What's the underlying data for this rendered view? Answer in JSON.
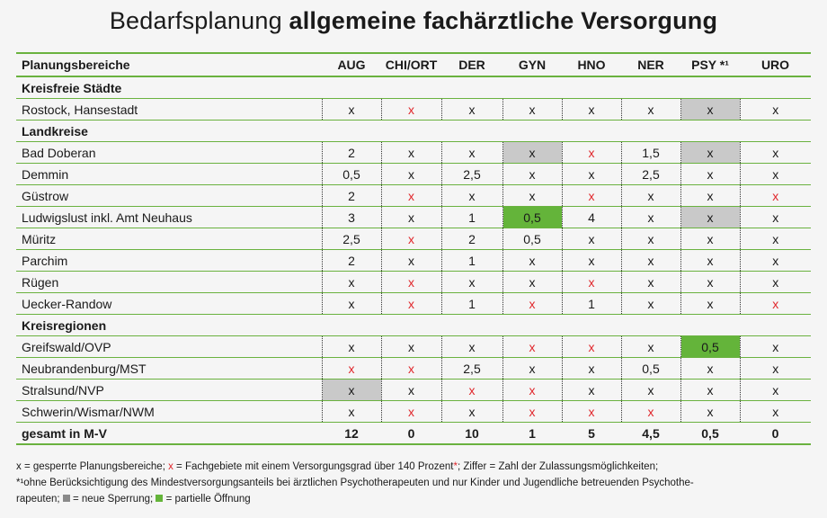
{
  "title": {
    "light": "Bedarfsplanung ",
    "bold": "allgemeine fachärztliche Versorgung"
  },
  "header": {
    "label": "Planungsbereiche",
    "columns": [
      "AUG",
      "CHI/ORT",
      "DER",
      "GYN",
      "HNO",
      "NER",
      "PSY *¹",
      "URO"
    ]
  },
  "groups": [
    {
      "label": "Kreisfreie Städte",
      "rows": [
        {
          "name": "Rostock, Hansestadt",
          "cells": [
            {
              "v": "x"
            },
            {
              "v": "x",
              "red": true
            },
            {
              "v": "x"
            },
            {
              "v": "x"
            },
            {
              "v": "x"
            },
            {
              "v": "x"
            },
            {
              "v": "x",
              "bg": "gray"
            },
            {
              "v": "x"
            }
          ]
        }
      ]
    },
    {
      "label": "Landkreise",
      "rows": [
        {
          "name": "Bad Doberan",
          "cells": [
            {
              "v": "2"
            },
            {
              "v": "x"
            },
            {
              "v": "x"
            },
            {
              "v": "x",
              "bg": "gray"
            },
            {
              "v": "x",
              "red": true
            },
            {
              "v": "1,5"
            },
            {
              "v": "x",
              "bg": "gray"
            },
            {
              "v": "x"
            }
          ]
        },
        {
          "name": "Demmin",
          "cells": [
            {
              "v": "0,5"
            },
            {
              "v": "x"
            },
            {
              "v": "2,5"
            },
            {
              "v": "x"
            },
            {
              "v": "x"
            },
            {
              "v": "2,5"
            },
            {
              "v": "x"
            },
            {
              "v": "x"
            }
          ]
        },
        {
          "name": "Güstrow",
          "cells": [
            {
              "v": "2"
            },
            {
              "v": "x",
              "red": true
            },
            {
              "v": "x"
            },
            {
              "v": "x"
            },
            {
              "v": "x",
              "red": true
            },
            {
              "v": "x"
            },
            {
              "v": "x"
            },
            {
              "v": "x",
              "red": true
            }
          ]
        },
        {
          "name": "Ludwigslust inkl. Amt Neuhaus",
          "cells": [
            {
              "v": "3"
            },
            {
              "v": "x"
            },
            {
              "v": "1"
            },
            {
              "v": "0,5",
              "bg": "green"
            },
            {
              "v": "4"
            },
            {
              "v": "x"
            },
            {
              "v": "x",
              "bg": "gray"
            },
            {
              "v": "x"
            }
          ]
        },
        {
          "name": "Müritz",
          "cells": [
            {
              "v": "2,5"
            },
            {
              "v": "x",
              "red": true
            },
            {
              "v": "2"
            },
            {
              "v": "0,5"
            },
            {
              "v": "x"
            },
            {
              "v": "x"
            },
            {
              "v": "x"
            },
            {
              "v": "x"
            }
          ]
        },
        {
          "name": "Parchim",
          "cells": [
            {
              "v": "2"
            },
            {
              "v": "x"
            },
            {
              "v": "1"
            },
            {
              "v": "x"
            },
            {
              "v": "x"
            },
            {
              "v": "x"
            },
            {
              "v": "x"
            },
            {
              "v": "x"
            }
          ]
        },
        {
          "name": "Rügen",
          "cells": [
            {
              "v": "x"
            },
            {
              "v": "x",
              "red": true
            },
            {
              "v": "x"
            },
            {
              "v": "x"
            },
            {
              "v": "x",
              "red": true
            },
            {
              "v": "x"
            },
            {
              "v": "x"
            },
            {
              "v": "x"
            }
          ]
        },
        {
          "name": "Uecker-Randow",
          "cells": [
            {
              "v": "x"
            },
            {
              "v": "x",
              "red": true
            },
            {
              "v": "1"
            },
            {
              "v": "x",
              "red": true
            },
            {
              "v": "1"
            },
            {
              "v": "x"
            },
            {
              "v": "x"
            },
            {
              "v": "x",
              "red": true
            }
          ]
        }
      ]
    },
    {
      "label": "Kreisregionen",
      "rows": [
        {
          "name": "Greifswald/OVP",
          "cells": [
            {
              "v": "x"
            },
            {
              "v": "x"
            },
            {
              "v": "x"
            },
            {
              "v": "x",
              "red": true
            },
            {
              "v": "x",
              "red": true
            },
            {
              "v": "x"
            },
            {
              "v": "0,5",
              "bg": "green"
            },
            {
              "v": "x"
            }
          ]
        },
        {
          "name": "Neubrandenburg/MST",
          "cells": [
            {
              "v": "x",
              "red": true
            },
            {
              "v": "x",
              "red": true
            },
            {
              "v": "2,5"
            },
            {
              "v": "x"
            },
            {
              "v": "x"
            },
            {
              "v": "0,5"
            },
            {
              "v": "x"
            },
            {
              "v": "x"
            }
          ]
        },
        {
          "name": "Stralsund/NVP",
          "cells": [
            {
              "v": "x",
              "bg": "gray"
            },
            {
              "v": "x"
            },
            {
              "v": "x",
              "red": true
            },
            {
              "v": "x",
              "red": true
            },
            {
              "v": "x"
            },
            {
              "v": "x"
            },
            {
              "v": "x"
            },
            {
              "v": "x"
            }
          ]
        },
        {
          "name": "Schwerin/Wismar/NWM",
          "cells": [
            {
              "v": "x"
            },
            {
              "v": "x",
              "red": true
            },
            {
              "v": "x"
            },
            {
              "v": "x",
              "red": true
            },
            {
              "v": "x",
              "red": true
            },
            {
              "v": "x",
              "red": true
            },
            {
              "v": "x"
            },
            {
              "v": "x"
            }
          ]
        }
      ]
    }
  ],
  "total": {
    "name": "gesamt in M-V",
    "values": [
      "12",
      "0",
      "10",
      "1",
      "5",
      "4,5",
      "0,5",
      "0"
    ]
  },
  "footer": {
    "p1": "x = gesperrte Planungsbereiche; ",
    "p1_red": "x",
    "p2": " = Fachgebiete mit einem Versorgungsgrad über 140 Prozent",
    "p2_star": "*",
    "p3": "; Ziffer = Zahl der Zulassungsmöglichkeiten;",
    "line2": "*¹ohne Berücksichtigung des Mindestversorgungsanteils bei ärztlichen Psychotherapeuten und nur Kinder und Jugendliche betreuenden Psychothe-",
    "line3a": "rapeuten; ",
    "line3b": " = neue Sperrung; ",
    "line3c": " = partielle Öffnung"
  },
  "colors": {
    "green": "#64b43a",
    "gray": "#c9c9c9",
    "red": "#e0262b",
    "rule": "#6ab23f"
  }
}
